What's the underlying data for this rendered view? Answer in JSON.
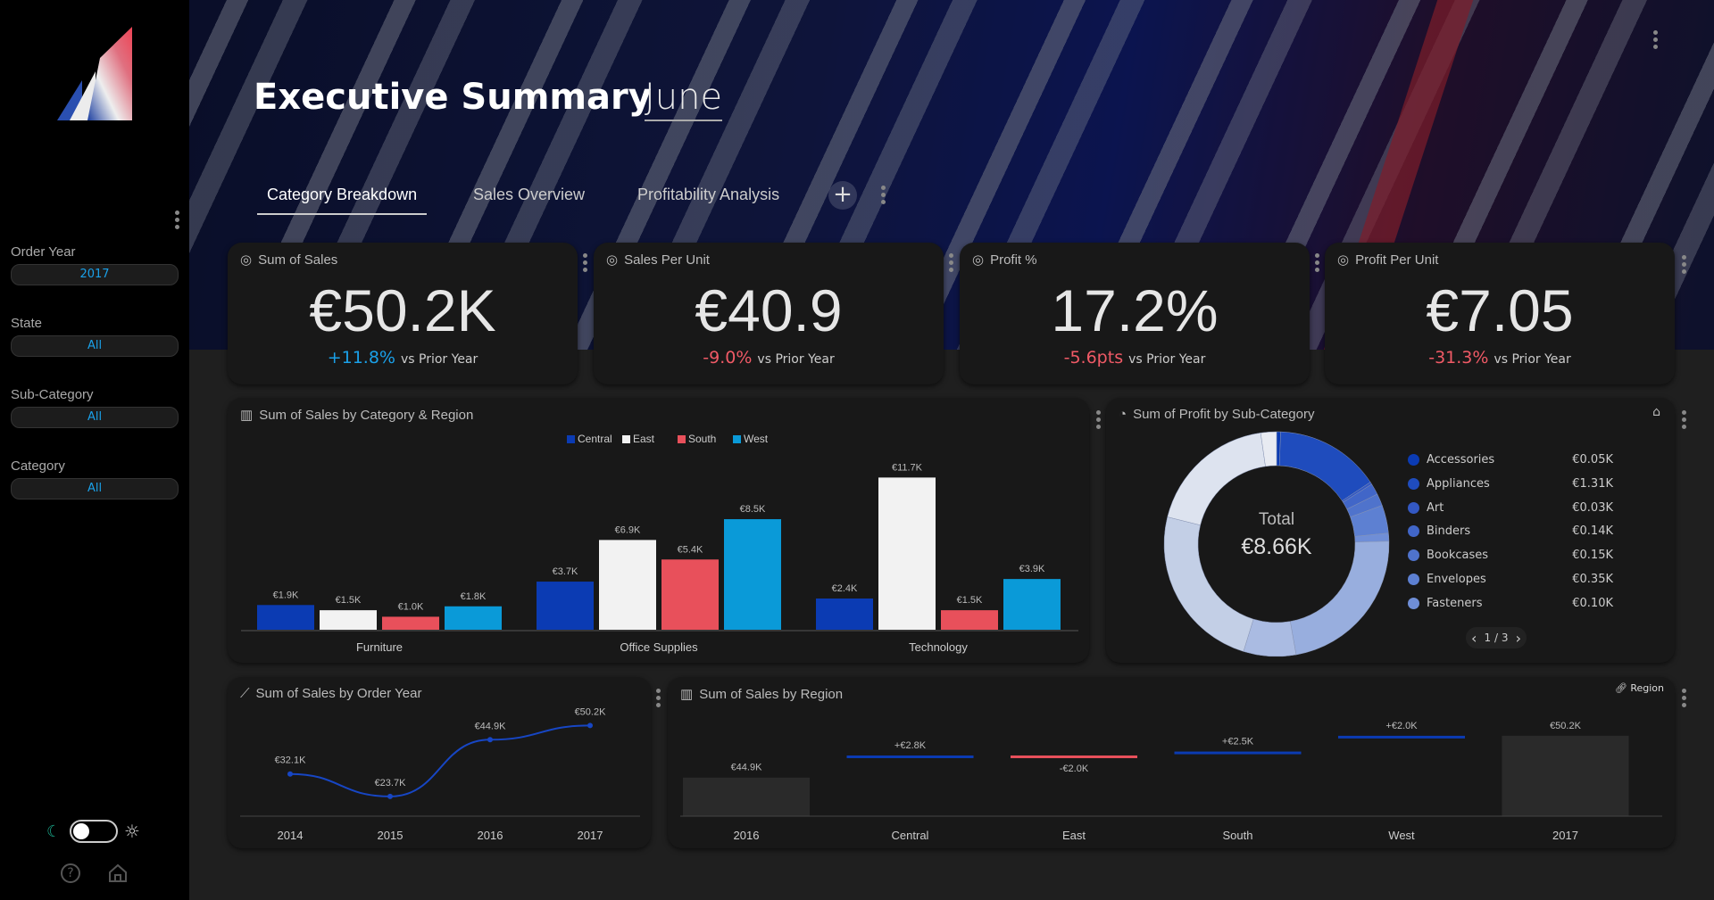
{
  "header": {
    "title": "Executive Summary",
    "month": "June",
    "tabs": [
      {
        "label": "Category Breakdown"
      },
      {
        "label": "Sales Overview"
      },
      {
        "label": "Profitability Analysis"
      }
    ]
  },
  "filters": [
    {
      "label": "Order Year",
      "value": "2017"
    },
    {
      "label": "State",
      "value": "All"
    },
    {
      "label": "Sub-Category",
      "value": "All"
    },
    {
      "label": "Category",
      "value": "All"
    }
  ],
  "kpis": [
    {
      "title": "Sum of Sales",
      "value": "€50.2K",
      "delta": "+11.8%",
      "delta_color": "#1aa0e8",
      "suffix": "vs Prior Year"
    },
    {
      "title": "Sales Per Unit",
      "value": "€40.9",
      "delta": "-9.0%",
      "delta_color": "#f05a66",
      "suffix": "vs Prior Year"
    },
    {
      "title": "Profit %",
      "value": "17.2%",
      "delta": "-5.6pts",
      "delta_color": "#f05a66",
      "suffix": "vs Prior Year"
    },
    {
      "title": "Profit Per Unit",
      "value": "€7.05",
      "delta": "-31.3%",
      "delta_color": "#f05a66",
      "suffix": "vs Prior Year"
    }
  ],
  "chart_data": [
    {
      "type": "bar",
      "title": "Sum of Sales by Category & Region",
      "categories": [
        "Furniture",
        "Office Supplies",
        "Technology"
      ],
      "series": [
        {
          "name": "Central",
          "color": "#0b3bb3",
          "values": [
            1.9,
            3.7,
            2.4
          ],
          "labels": [
            "€1.9K",
            "€3.7K",
            "€2.4K"
          ]
        },
        {
          "name": "East",
          "color": "#f2f2f2",
          "values": [
            1.5,
            6.9,
            11.7
          ],
          "labels": [
            "€1.5K",
            "€6.9K",
            "€11.7K"
          ]
        },
        {
          "name": "South",
          "color": "#e8505b",
          "values": [
            1.0,
            5.4,
            1.5
          ],
          "labels": [
            "€1.0K",
            "€5.4K",
            "€1.5K"
          ]
        },
        {
          "name": "West",
          "color": "#0a9ad8",
          "values": [
            1.8,
            8.5,
            3.9
          ],
          "labels": [
            "€1.8K",
            "€8.5K",
            "€3.9K"
          ]
        }
      ],
      "ylim": [
        0,
        12
      ]
    },
    {
      "type": "pie",
      "title": "Sum of Profit by Sub-Category",
      "center_label": "Total",
      "center_value": "€8.66K",
      "total": 8.66,
      "page": "1 / 3",
      "slices": [
        {
          "name": "Accessories",
          "value": 0.05,
          "label": "€0.05K",
          "color": "#0b3bb3"
        },
        {
          "name": "Appliances",
          "value": 1.31,
          "label": "€1.31K",
          "color": "#1f4cbd"
        },
        {
          "name": "Art",
          "value": 0.03,
          "label": "€0.03K",
          "color": "#3358c3"
        },
        {
          "name": "Binders",
          "value": 0.14,
          "label": "€0.14K",
          "color": "#4166c8"
        },
        {
          "name": "Bookcases",
          "value": 0.15,
          "label": "€0.15K",
          "color": "#4f73cc"
        },
        {
          "name": "Envelopes",
          "value": 0.35,
          "label": "€0.35K",
          "color": "#5d80d2"
        },
        {
          "name": "Fasteners",
          "value": 0.1,
          "label": "€0.10K",
          "color": "#6f8ed7"
        }
      ]
    },
    {
      "type": "line",
      "title": "Sum of Sales by Order Year",
      "x": [
        "2014",
        "2015",
        "2016",
        "2017"
      ],
      "values": [
        32.1,
        23.7,
        44.9,
        50.2
      ],
      "labels": [
        "€32.1K",
        "€23.7K",
        "€44.9K",
        "€50.2K"
      ],
      "color": "#1746c4",
      "ylim": [
        15,
        55
      ]
    },
    {
      "type": "bar",
      "title": "Sum of Sales by Region",
      "subtype": "waterfall",
      "legend": "Region",
      "categories": [
        "2016",
        "Central",
        "East",
        "South",
        "West",
        "2017"
      ],
      "values": [
        44.9,
        2.8,
        -2.0,
        2.5,
        2.0,
        50.2
      ],
      "labels": [
        "€44.9K",
        "+€2.8K",
        "-€2.0K",
        "+€2.5K",
        "+€2.0K",
        "€50.2K"
      ],
      "kinds": [
        "total",
        "delta",
        "delta",
        "delta",
        "delta",
        "total"
      ],
      "ylim": [
        0,
        52
      ]
    }
  ]
}
